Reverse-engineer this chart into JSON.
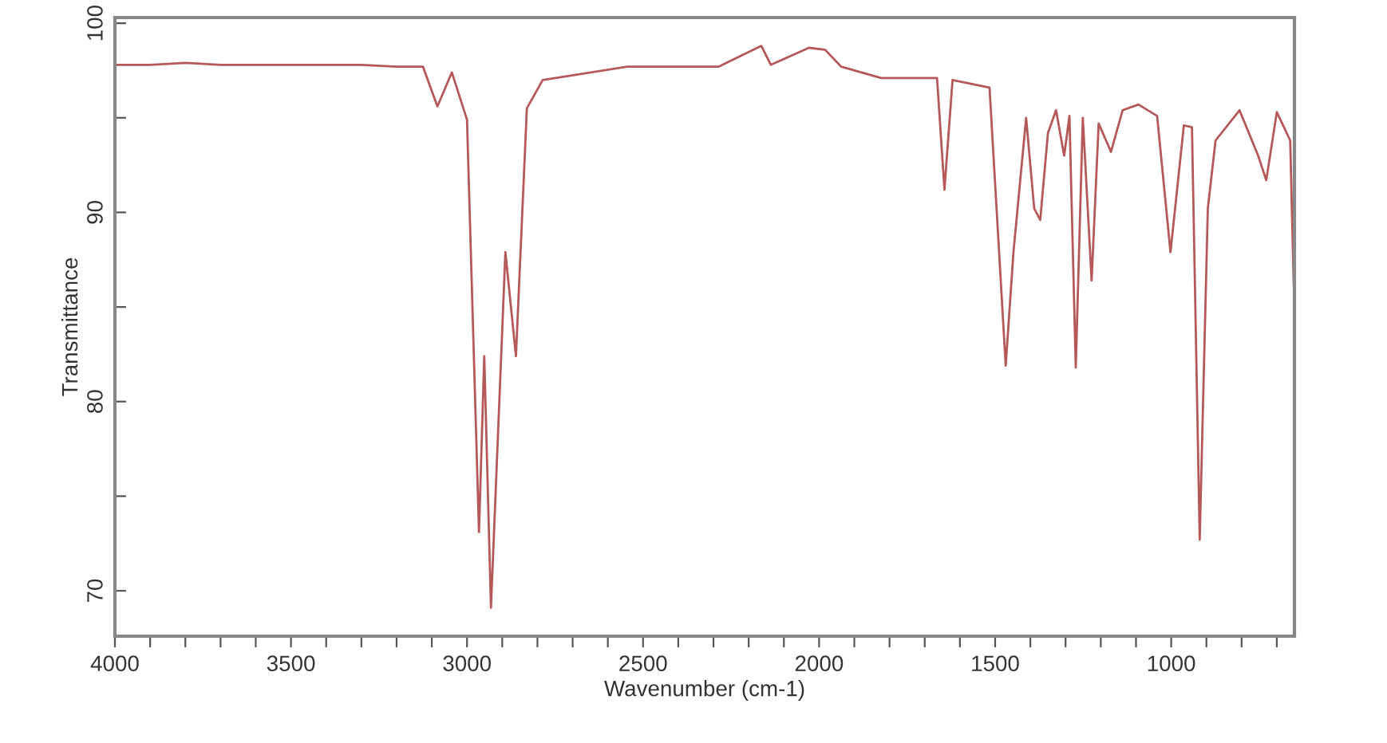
{
  "chart_data": {
    "type": "line",
    "xlabel": "Wavenumber (cm-1)",
    "ylabel": "Transmittance",
    "xlim": [
      4000,
      650
    ],
    "ylim": [
      67.6,
      100.3
    ],
    "xticks": [
      4000,
      {
        "value": 3900,
        "label": null
      },
      {
        "value": 3800,
        "label": null
      },
      {
        "value": 3700,
        "label": null
      },
      {
        "value": 3600,
        "label": null
      },
      3500,
      {
        "value": 3400,
        "label": null
      },
      {
        "value": 3300,
        "label": null
      },
      {
        "value": 3200,
        "label": null
      },
      {
        "value": 3100,
        "label": null
      },
      3000,
      {
        "value": 2900,
        "label": null
      },
      {
        "value": 2800,
        "label": null
      },
      {
        "value": 2700,
        "label": null
      },
      {
        "value": 2600,
        "label": null
      },
      2500,
      {
        "value": 2400,
        "label": null
      },
      {
        "value": 2300,
        "label": null
      },
      {
        "value": 2200,
        "label": null
      },
      {
        "value": 2100,
        "label": null
      },
      2000,
      {
        "value": 1900,
        "label": null
      },
      {
        "value": 1800,
        "label": null
      },
      {
        "value": 1700,
        "label": null
      },
      {
        "value": 1600,
        "label": null
      },
      1500,
      {
        "value": 1400,
        "label": null
      },
      {
        "value": 1300,
        "label": null
      },
      {
        "value": 1200,
        "label": null
      },
      {
        "value": 1100,
        "label": null
      },
      1000,
      {
        "value": 900,
        "label": null
      },
      {
        "value": 800,
        "label": null
      },
      {
        "value": 700,
        "label": null
      }
    ],
    "yticks": [
      70,
      {
        "value": 75,
        "label": null
      },
      80,
      {
        "value": 85,
        "label": null
      },
      90,
      {
        "value": 95,
        "label": null
      },
      100
    ],
    "grid": false,
    "legend": false,
    "marker": "none",
    "line_style": "solid",
    "series": [
      {
        "color": "#b5585a",
        "x": [
          4000,
          3900,
          3800,
          3700,
          3600,
          3500,
          3400,
          3300,
          3200,
          3125,
          3084,
          3043,
          3000,
          2966,
          2951,
          2932,
          2891,
          2861,
          2830,
          2785,
          2545,
          2286,
          2164,
          2137,
          2029,
          1983,
          1937,
          1824,
          1665,
          1644,
          1621,
          1516,
          1470,
          1448,
          1412,
          1389,
          1372,
          1350,
          1327,
          1304,
          1289,
          1271,
          1251,
          1226,
          1206,
          1171,
          1138,
          1093,
          1040,
          1002,
          964,
          941,
          919,
          896,
          874,
          806,
          753,
          730,
          700,
          662,
          652
        ],
        "values": [
          97.8,
          97.8,
          97.9,
          97.8,
          97.8,
          97.8,
          97.8,
          97.8,
          97.7,
          97.7,
          95.6,
          97.4,
          94.9,
          73.1,
          82.4,
          69.1,
          87.9,
          82.4,
          95.5,
          97.0,
          97.7,
          97.7,
          98.8,
          97.8,
          98.7,
          98.6,
          97.7,
          97.1,
          97.1,
          91.2,
          97.0,
          96.6,
          81.9,
          87.9,
          95.0,
          90.2,
          89.6,
          94.2,
          95.4,
          93.0,
          95.1,
          81.8,
          95.0,
          86.4,
          94.7,
          93.2,
          95.4,
          95.7,
          95.1,
          87.9,
          94.6,
          94.5,
          72.7,
          90.2,
          93.8,
          95.4,
          93.0,
          91.7,
          95.3,
          93.8,
          86.2
        ]
      }
    ]
  }
}
